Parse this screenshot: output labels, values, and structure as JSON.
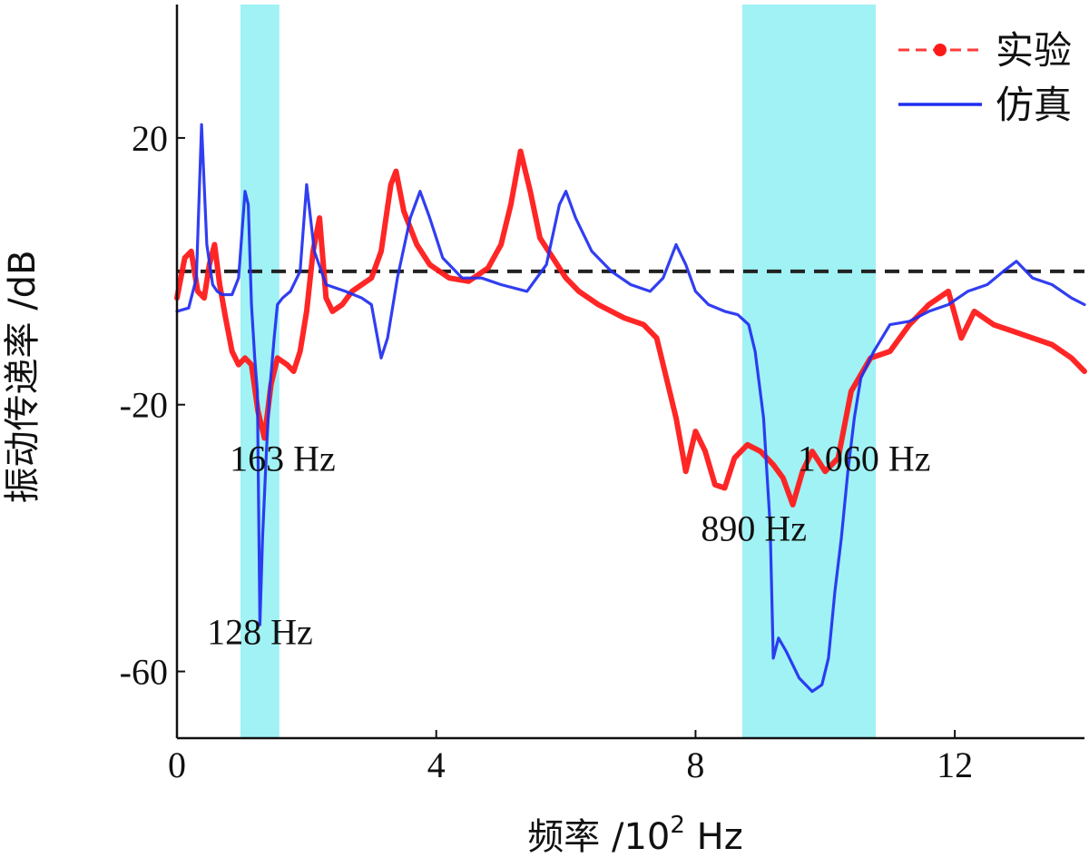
{
  "chart_data": {
    "type": "line",
    "xlabel": "频率 /10",
    "xlabel_sup": "2",
    "xlabel_unit": " Hz",
    "ylabel": "振动传递率 /dB",
    "xlim": [
      0,
      14
    ],
    "ylim": [
      -70,
      40
    ],
    "x_ticks": [
      0,
      4,
      8,
      12
    ],
    "y_ticks": [
      20,
      -20,
      -60
    ],
    "x_tick_labels": [
      "0",
      "4",
      "8",
      "12"
    ],
    "y_tick_labels": [
      "20",
      "-20",
      "-60"
    ],
    "reference_line": {
      "y": 0,
      "style": "dashed",
      "color": "#222222"
    },
    "shaded_regions": [
      {
        "x": [
          0.98,
          1.58
        ],
        "color": "#8FF0F2"
      },
      {
        "x": [
          8.72,
          10.78
        ],
        "color": "#8FF0F2"
      }
    ],
    "annotations": [
      {
        "text": "128 Hz",
        "x": 1.28,
        "y": -54
      },
      {
        "text": "163 Hz",
        "x": 1.63,
        "y": -28
      },
      {
        "text": "890 Hz",
        "x": 8.9,
        "y": -38.5
      },
      {
        "text": "1 060 Hz",
        "x": 10.6,
        "y": -28
      }
    ],
    "legend": {
      "position": "top-right",
      "entries": [
        {
          "label": "实验",
          "color": "#FF1A1A",
          "marker": "dot-dash"
        },
        {
          "label": "仿真",
          "color": "#1F2EF0",
          "marker": "line"
        }
      ]
    },
    "series": [
      {
        "name": "实验",
        "color": "#FF1A1A",
        "points": [
          [
            0.0,
            -4
          ],
          [
            0.12,
            2
          ],
          [
            0.22,
            3
          ],
          [
            0.32,
            -3
          ],
          [
            0.42,
            -4
          ],
          [
            0.5,
            1
          ],
          [
            0.58,
            4
          ],
          [
            0.66,
            -2
          ],
          [
            0.75,
            -7
          ],
          [
            0.85,
            -12
          ],
          [
            0.95,
            -14
          ],
          [
            1.05,
            -13
          ],
          [
            1.15,
            -14
          ],
          [
            1.25,
            -21
          ],
          [
            1.35,
            -25
          ],
          [
            1.45,
            -17
          ],
          [
            1.55,
            -13
          ],
          [
            1.7,
            -14
          ],
          [
            1.8,
            -15
          ],
          [
            1.9,
            -12
          ],
          [
            2.0,
            -6
          ],
          [
            2.1,
            3
          ],
          [
            2.2,
            8
          ],
          [
            2.3,
            -4
          ],
          [
            2.4,
            -6
          ],
          [
            2.55,
            -5
          ],
          [
            2.7,
            -3
          ],
          [
            2.85,
            -2
          ],
          [
            3.0,
            -1
          ],
          [
            3.15,
            3
          ],
          [
            3.3,
            13
          ],
          [
            3.38,
            15
          ],
          [
            3.5,
            9
          ],
          [
            3.7,
            4
          ],
          [
            3.9,
            1
          ],
          [
            4.2,
            -1
          ],
          [
            4.5,
            -1.5
          ],
          [
            4.8,
            0.5
          ],
          [
            5.0,
            4
          ],
          [
            5.15,
            10
          ],
          [
            5.3,
            18
          ],
          [
            5.45,
            12
          ],
          [
            5.6,
            5
          ],
          [
            5.8,
            2
          ],
          [
            6.0,
            -1
          ],
          [
            6.2,
            -3
          ],
          [
            6.5,
            -5
          ],
          [
            6.9,
            -7
          ],
          [
            7.2,
            -8
          ],
          [
            7.4,
            -10
          ],
          [
            7.55,
            -16
          ],
          [
            7.7,
            -22
          ],
          [
            7.85,
            -30
          ],
          [
            8.0,
            -24
          ],
          [
            8.15,
            -27
          ],
          [
            8.3,
            -32
          ],
          [
            8.45,
            -32.5
          ],
          [
            8.6,
            -28
          ],
          [
            8.8,
            -26
          ],
          [
            9.0,
            -27
          ],
          [
            9.2,
            -29
          ],
          [
            9.35,
            -31
          ],
          [
            9.5,
            -35
          ],
          [
            9.65,
            -30
          ],
          [
            9.8,
            -27
          ],
          [
            10.0,
            -30
          ],
          [
            10.2,
            -28
          ],
          [
            10.4,
            -18
          ],
          [
            10.7,
            -13
          ],
          [
            11.0,
            -12
          ],
          [
            11.3,
            -8
          ],
          [
            11.6,
            -5
          ],
          [
            11.9,
            -3
          ],
          [
            12.1,
            -10
          ],
          [
            12.3,
            -6
          ],
          [
            12.6,
            -8
          ],
          [
            12.9,
            -9
          ],
          [
            13.2,
            -10
          ],
          [
            13.5,
            -11
          ],
          [
            13.8,
            -13
          ],
          [
            14.0,
            -15
          ]
        ]
      },
      {
        "name": "仿真",
        "color": "#1F2EF0",
        "points": [
          [
            0.0,
            -6
          ],
          [
            0.18,
            -5.5
          ],
          [
            0.3,
            -1
          ],
          [
            0.38,
            22
          ],
          [
            0.46,
            4
          ],
          [
            0.55,
            -2
          ],
          [
            0.62,
            -3
          ],
          [
            0.7,
            -3.5
          ],
          [
            0.85,
            -3.5
          ],
          [
            0.95,
            -1
          ],
          [
            1.05,
            12
          ],
          [
            1.1,
            10
          ],
          [
            1.15,
            -5
          ],
          [
            1.2,
            -13
          ],
          [
            1.24,
            -18
          ],
          [
            1.28,
            -53
          ],
          [
            1.32,
            -40
          ],
          [
            1.38,
            -27
          ],
          [
            1.43,
            -18
          ],
          [
            1.5,
            -10
          ],
          [
            1.55,
            -5
          ],
          [
            1.63,
            -4
          ],
          [
            1.75,
            -3
          ],
          [
            1.9,
            0
          ],
          [
            2.0,
            13
          ],
          [
            2.12,
            3
          ],
          [
            2.3,
            -2
          ],
          [
            2.6,
            -3
          ],
          [
            2.85,
            -4
          ],
          [
            3.0,
            -5
          ],
          [
            3.15,
            -13
          ],
          [
            3.25,
            -10
          ],
          [
            3.4,
            -1
          ],
          [
            3.6,
            8
          ],
          [
            3.75,
            12
          ],
          [
            3.9,
            8
          ],
          [
            4.1,
            2
          ],
          [
            4.4,
            -1
          ],
          [
            4.7,
            -1
          ],
          [
            5.0,
            -2
          ],
          [
            5.4,
            -3
          ],
          [
            5.7,
            1
          ],
          [
            5.9,
            10
          ],
          [
            6.0,
            12
          ],
          [
            6.15,
            8
          ],
          [
            6.4,
            3
          ],
          [
            6.7,
            0
          ],
          [
            7.0,
            -2
          ],
          [
            7.3,
            -3
          ],
          [
            7.5,
            -1
          ],
          [
            7.7,
            4
          ],
          [
            7.85,
            1
          ],
          [
            8.0,
            -3
          ],
          [
            8.2,
            -5
          ],
          [
            8.45,
            -6
          ],
          [
            8.65,
            -6.5
          ],
          [
            8.82,
            -8
          ],
          [
            8.92,
            -12
          ],
          [
            9.05,
            -22
          ],
          [
            9.15,
            -38
          ],
          [
            9.2,
            -58
          ],
          [
            9.28,
            -55
          ],
          [
            9.4,
            -57
          ],
          [
            9.6,
            -61
          ],
          [
            9.8,
            -63
          ],
          [
            9.95,
            -62
          ],
          [
            10.05,
            -58
          ],
          [
            10.15,
            -48
          ],
          [
            10.25,
            -40
          ],
          [
            10.35,
            -30
          ],
          [
            10.45,
            -22
          ],
          [
            10.55,
            -16
          ],
          [
            10.75,
            -12
          ],
          [
            11.0,
            -8
          ],
          [
            11.3,
            -7.5
          ],
          [
            11.6,
            -6
          ],
          [
            11.9,
            -5
          ],
          [
            12.2,
            -3
          ],
          [
            12.5,
            -2
          ],
          [
            12.75,
            0
          ],
          [
            12.95,
            1.5
          ],
          [
            13.2,
            -1
          ],
          [
            13.5,
            -2
          ],
          [
            13.8,
            -4
          ],
          [
            14.0,
            -5
          ]
        ]
      }
    ]
  }
}
